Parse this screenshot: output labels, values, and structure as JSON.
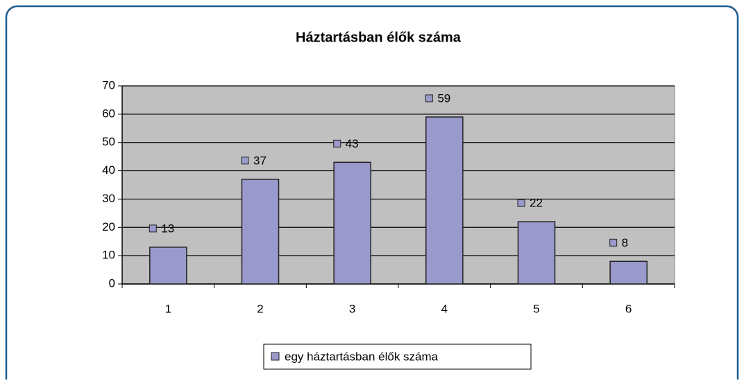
{
  "chart_data": {
    "type": "bar",
    "title": "Háztartásban élők száma",
    "categories": [
      "1",
      "2",
      "3",
      "4",
      "5",
      "6"
    ],
    "series": [
      {
        "name": "egy háztartásban élők száma",
        "color": "#9999cc",
        "values": [
          13,
          37,
          43,
          59,
          22,
          8
        ]
      }
    ],
    "ylim": [
      0,
      70
    ],
    "yticks": [
      0,
      10,
      20,
      30,
      40,
      50,
      60,
      70
    ],
    "grid": true,
    "legend": "bottom"
  }
}
